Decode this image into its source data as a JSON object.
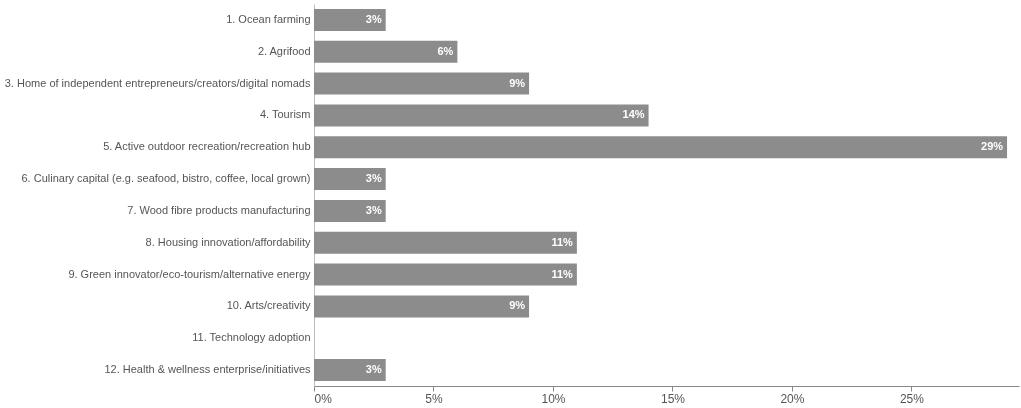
{
  "chart_data": {
    "type": "bar",
    "orientation": "horizontal",
    "categories": [
      "1. Ocean farming",
      "2. Agrifood",
      "3. Home of independent entrepreneurs/creators/digital nomads",
      "4. Tourism",
      "5. Active outdoor recreation/recreation hub",
      "6. Culinary capital (e.g. seafood, bistro, coffee, local grown)",
      "7. Wood fibre products manufacturing",
      "8. Housing innovation/affordability",
      "9. Green innovator/eco-tourism/alternative energy",
      "10. Arts/creativity",
      "11. Technology adoption",
      "12. Health & wellness enterprise/initiatives"
    ],
    "values": [
      3,
      6,
      9,
      14,
      29,
      3,
      3,
      11,
      11,
      9,
      0,
      3
    ],
    "value_labels": [
      "3%",
      "6%",
      "9%",
      "14%",
      "29%",
      "3%",
      "3%",
      "11%",
      "11%",
      "9%",
      null,
      "3%"
    ],
    "color": "#8c8c8c",
    "xlim": [
      0,
      29.5
    ],
    "xticks": [
      {
        "value": 0,
        "label": "0%"
      },
      {
        "value": 5,
        "label": "5%"
      },
      {
        "value": 10,
        "label": "10%"
      },
      {
        "value": 15,
        "label": "15%"
      },
      {
        "value": 20,
        "label": "20%"
      },
      {
        "value": 25,
        "label": "25%"
      }
    ],
    "grid": false
  }
}
